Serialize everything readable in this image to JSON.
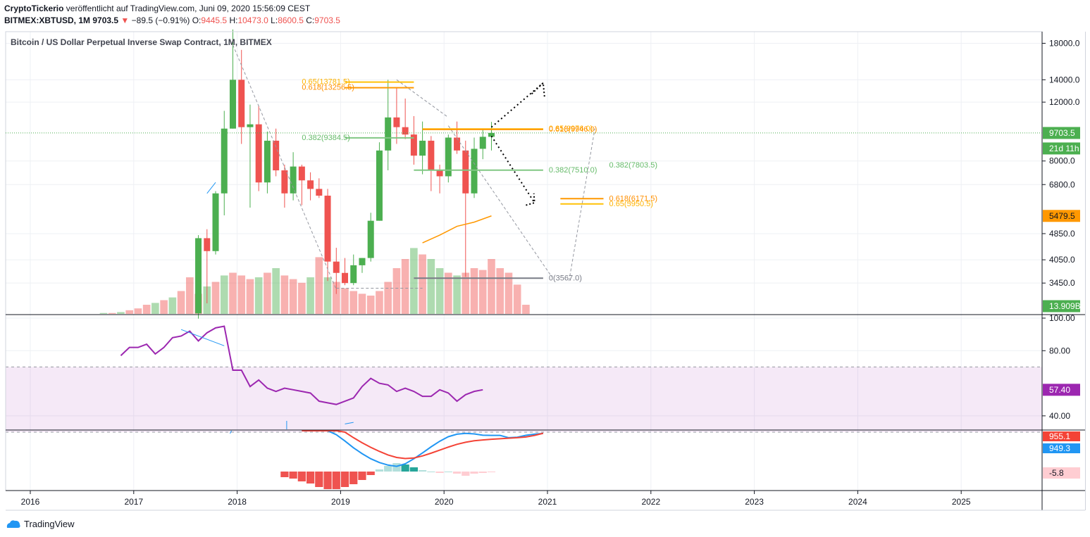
{
  "header": {
    "author": "CryptoTickerio",
    "published": " veröffentlicht auf TradingView.com, Juni 09, 2020 15:56:09 CEST",
    "symbol": "BITMEX:XBTUSD, 1M",
    "price": "9703.5",
    "arrow": "▼",
    "change": "−89.5 (−0.91%)",
    "o_label": "O:",
    "o_value": "9445.5",
    "h_label": "H:",
    "h_value": "10473.0",
    "l_label": "L:",
    "l_value": "8600.5",
    "c_label": "C:",
    "c_value": "9703.5"
  },
  "chart_title": "Bitcoin / US Dollar Perpetual Inverse Swap Contract, 1M, BITMEX",
  "footer": {
    "brand": "TradingView"
  },
  "colors": {
    "up": "#4caf50",
    "down": "#ef5350",
    "rsi": "#9c27b0",
    "macd": "#2196f3",
    "signal": "#f44336",
    "fib_gold": "#ffc107",
    "fib_orange": "#ff9800",
    "fib_green": "#81c784",
    "ma": "#ff9800"
  },
  "chart_data": [
    {
      "type": "candlestick",
      "title": "Bitcoin / US Dollar Perpetual Inverse Swap Contract, 1M, BITMEX",
      "scale": "log",
      "ylim": [
        2900,
        19500
      ],
      "y_ticks": [
        "18000.0",
        "14000.0",
        "12000.0",
        "8000.0",
        "6800.0",
        "4850.0",
        "4050.0",
        "3450.0"
      ],
      "y_tick_values": [
        18000,
        14000,
        12000,
        8000,
        6800,
        4850,
        4050,
        3450
      ],
      "x_ticks": [
        "2016",
        "2017",
        "2018",
        "2019",
        "2020",
        "2021",
        "2022",
        "2023",
        "2024",
        "2025"
      ],
      "price_tag": {
        "value": 9703.5,
        "label": "9703.5",
        "countdown": "21d 11h"
      },
      "ma_tag": {
        "value": 5479.5,
        "label": "5479.5"
      },
      "volume_tag": "13.909B",
      "candles": [
        {
          "date": "2017-08",
          "o": 2800,
          "h": 4800,
          "l": 2700,
          "c": 4700
        },
        {
          "date": "2017-09",
          "o": 4700,
          "h": 5000,
          "l": 3000,
          "c": 4300
        },
        {
          "date": "2017-10",
          "o": 4300,
          "h": 6500,
          "l": 4200,
          "c": 6400
        },
        {
          "date": "2017-11",
          "o": 6400,
          "h": 11300,
          "l": 5500,
          "c": 10000
        },
        {
          "date": "2017-12",
          "o": 10000,
          "h": 19800,
          "l": 10000,
          "c": 14000
        },
        {
          "date": "2018-01",
          "o": 14000,
          "h": 17200,
          "l": 9000,
          "c": 10100
        },
        {
          "date": "2018-02",
          "o": 10100,
          "h": 11800,
          "l": 5800,
          "c": 10300
        },
        {
          "date": "2018-03",
          "o": 10300,
          "h": 11700,
          "l": 6500,
          "c": 6900
        },
        {
          "date": "2018-04",
          "o": 6900,
          "h": 9800,
          "l": 6400,
          "c": 9200
        },
        {
          "date": "2018-05",
          "o": 9200,
          "h": 10000,
          "l": 7200,
          "c": 7500
        },
        {
          "date": "2018-06",
          "o": 7500,
          "h": 7800,
          "l": 5800,
          "c": 6400
        },
        {
          "date": "2018-07",
          "o": 6400,
          "h": 8500,
          "l": 6100,
          "c": 7700
        },
        {
          "date": "2018-08",
          "o": 7700,
          "h": 7800,
          "l": 5900,
          "c": 7000
        },
        {
          "date": "2018-09",
          "o": 7000,
          "h": 7400,
          "l": 6100,
          "c": 6600
        },
        {
          "date": "2018-10",
          "o": 6600,
          "h": 7100,
          "l": 6200,
          "c": 6300
        },
        {
          "date": "2018-11",
          "o": 6300,
          "h": 6600,
          "l": 3500,
          "c": 4000
        },
        {
          "date": "2018-12",
          "o": 4000,
          "h": 4400,
          "l": 3200,
          "c": 3700
        },
        {
          "date": "2019-01",
          "o": 3700,
          "h": 4100,
          "l": 3400,
          "c": 3450
        },
        {
          "date": "2019-02",
          "o": 3450,
          "h": 4200,
          "l": 3400,
          "c": 3900
        },
        {
          "date": "2019-03",
          "o": 3900,
          "h": 4100,
          "l": 3700,
          "c": 4100
        },
        {
          "date": "2019-04",
          "o": 4100,
          "h": 5600,
          "l": 4000,
          "c": 5300
        },
        {
          "date": "2019-05",
          "o": 5300,
          "h": 9100,
          "l": 5300,
          "c": 8600
        },
        {
          "date": "2019-06",
          "o": 8600,
          "h": 14000,
          "l": 7500,
          "c": 10800
        },
        {
          "date": "2019-07",
          "o": 10800,
          "h": 13200,
          "l": 9000,
          "c": 10100
        },
        {
          "date": "2019-08",
          "o": 10100,
          "h": 12300,
          "l": 9300,
          "c": 9600
        },
        {
          "date": "2019-09",
          "o": 9600,
          "h": 10900,
          "l": 7800,
          "c": 8300
        },
        {
          "date": "2019-10",
          "o": 8300,
          "h": 10500,
          "l": 7300,
          "c": 9200
        },
        {
          "date": "2019-11",
          "o": 9200,
          "h": 9500,
          "l": 6500,
          "c": 7500
        },
        {
          "date": "2019-12",
          "o": 7500,
          "h": 7800,
          "l": 6400,
          "c": 7200
        },
        {
          "date": "2020-01",
          "o": 7200,
          "h": 9600,
          "l": 6900,
          "c": 9400
        },
        {
          "date": "2020-02",
          "o": 9400,
          "h": 10500,
          "l": 8400,
          "c": 8600
        },
        {
          "date": "2020-03",
          "o": 8600,
          "h": 9200,
          "l": 3600,
          "c": 6400
        },
        {
          "date": "2020-04",
          "o": 6400,
          "h": 9400,
          "l": 6200,
          "c": 8700
        },
        {
          "date": "2020-05",
          "o": 8700,
          "h": 10000,
          "l": 8100,
          "c": 9450
        },
        {
          "date": "2020-06",
          "o": 9450,
          "h": 10473,
          "l": 8600,
          "c": 9703.5
        }
      ],
      "fib_levels": [
        {
          "label": "0.65(13781.5)",
          "value": 13781.5
        },
        {
          "label": "0.618(13256.5)",
          "value": 13256.5
        },
        {
          "label": "0.382(9384.5)",
          "value": 9384.5
        },
        {
          "label": "0.65(9976.0)",
          "value": 9976.0
        },
        {
          "label": "0.618(9946.0)",
          "value": 9946.0
        },
        {
          "label": "0.382(7510.0)",
          "value": 7510.0
        },
        {
          "label": "0.382(7803.5)",
          "value": 7803.5
        },
        {
          "label": "0.618(6171.5)",
          "value": 6171.5
        },
        {
          "label": "0.65(5950.5)",
          "value": 5950.5
        },
        {
          "label": "0(3567.0)",
          "value": 3567.0
        }
      ]
    },
    {
      "type": "line",
      "name": "RSI",
      "ylim": [
        30,
        100
      ],
      "y_ticks": [
        "100.00",
        "80.00",
        "40.00"
      ],
      "y_tick_values": [
        100,
        80,
        40
      ],
      "band": [
        30,
        70
      ],
      "last_label": "57.40",
      "values": [
        77,
        82,
        82,
        84,
        78,
        82,
        88,
        89,
        92,
        86,
        91,
        94,
        95,
        68,
        68,
        58,
        62,
        57,
        55,
        57,
        56,
        55,
        54,
        49,
        48,
        47,
        49,
        51,
        58,
        63,
        60,
        59,
        55,
        57,
        55,
        52,
        52,
        56,
        54,
        49,
        53,
        55,
        56
      ]
    },
    {
      "type": "line",
      "name": "MACD",
      "labels": [
        "955.1",
        "949.3",
        "-5.8"
      ],
      "macd": [
        1800,
        1600,
        1400,
        1150,
        900,
        650,
        380,
        150,
        -50,
        -200,
        -300,
        -350,
        -250,
        -50,
        180,
        420,
        640,
        820,
        920,
        950,
        930,
        880,
        870,
        870,
        780,
        800,
        875,
        920,
        949.3
      ],
      "signal": [
        2000,
        1800,
        1600,
        1400,
        1200,
        1000,
        780,
        580,
        400,
        240,
        100,
        0,
        -40,
        -20,
        60,
        170,
        290,
        410,
        520,
        600,
        660,
        690,
        720,
        740,
        760,
        780,
        810,
        870,
        955.1
      ],
      "histogram": [
        -8,
        -10,
        -14,
        -17,
        -22,
        -25,
        -25,
        -22,
        -18,
        -12,
        -5,
        3,
        8,
        12,
        10,
        6,
        2,
        0,
        -2,
        0,
        -3,
        -6,
        -3,
        -2,
        -1
      ]
    }
  ]
}
